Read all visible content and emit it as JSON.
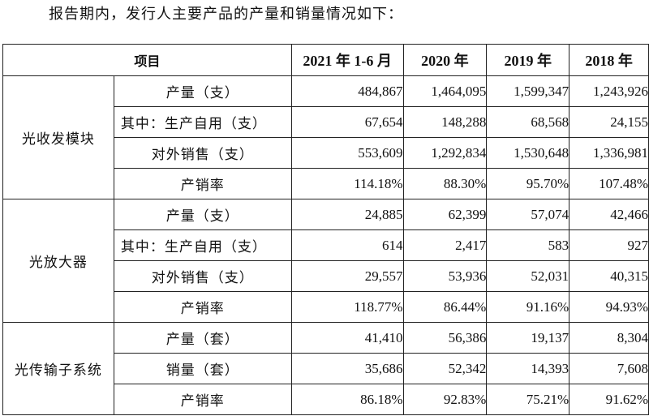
{
  "caption": "报告期内，发行人主要产品的产量和销量情况如下：",
  "header": {
    "item": "项目",
    "years": [
      "2021 年 1-6 月",
      "2020 年",
      "2019 年",
      "2018 年"
    ]
  },
  "groups": [
    {
      "name": "光收发模块",
      "rows": [
        {
          "label": "产量（支）",
          "values": [
            "484,867",
            "1,464,095",
            "1,599,347",
            "1,243,926"
          ]
        },
        {
          "label": "其中：生产自用（支）",
          "values": [
            "67,654",
            "148,288",
            "68,568",
            "24,155"
          ]
        },
        {
          "label": "对外销售（支）",
          "values": [
            "553,609",
            "1,292,834",
            "1,530,648",
            "1,336,981"
          ]
        },
        {
          "label": "产销率",
          "values": [
            "114.18%",
            "88.30%",
            "95.70%",
            "107.48%"
          ]
        }
      ]
    },
    {
      "name": "光放大器",
      "rows": [
        {
          "label": "产量（支）",
          "values": [
            "24,885",
            "62,399",
            "57,074",
            "42,466"
          ]
        },
        {
          "label": "其中：生产自用（支）",
          "values": [
            "614",
            "2,417",
            "583",
            "927"
          ]
        },
        {
          "label": "对外销售（支）",
          "values": [
            "29,557",
            "53,936",
            "52,031",
            "40,315"
          ]
        },
        {
          "label": "产销率",
          "values": [
            "118.77%",
            "86.44%",
            "91.16%",
            "94.93%"
          ]
        }
      ]
    },
    {
      "name": "光传输子系统",
      "rows": [
        {
          "label": "产量（套）",
          "values": [
            "41,410",
            "56,386",
            "19,137",
            "8,304"
          ]
        },
        {
          "label": "销量（套）",
          "values": [
            "35,686",
            "52,342",
            "14,393",
            "7,608"
          ]
        },
        {
          "label": "产销率",
          "values": [
            "86.18%",
            "92.83%",
            "75.21%",
            "91.62%"
          ]
        }
      ]
    }
  ]
}
